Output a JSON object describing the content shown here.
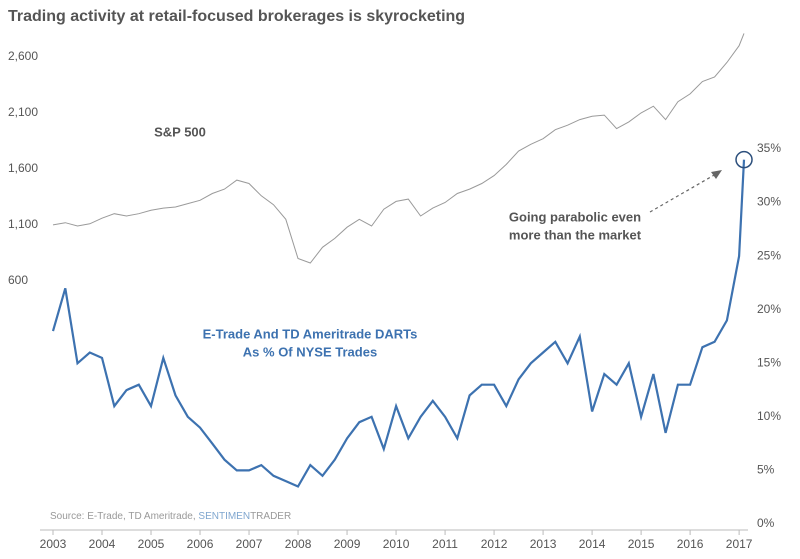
{
  "chart_data": {
    "type": "line",
    "title": "Trading activity at retail-focused brokerages is skyrocketing",
    "x": [
      2003,
      2003.25,
      2003.5,
      2003.75,
      2004,
      2004.25,
      2004.5,
      2004.75,
      2005,
      2005.25,
      2005.5,
      2005.75,
      2006,
      2006.25,
      2006.5,
      2006.75,
      2007,
      2007.25,
      2007.5,
      2007.75,
      2008,
      2008.25,
      2008.5,
      2008.75,
      2009,
      2009.25,
      2009.5,
      2009.75,
      2010,
      2010.25,
      2010.5,
      2010.75,
      2011,
      2011.25,
      2011.5,
      2011.75,
      2012,
      2012.25,
      2012.5,
      2012.75,
      2013,
      2013.25,
      2013.5,
      2013.75,
      2014,
      2014.25,
      2014.5,
      2014.75,
      2015,
      2015.25,
      2015.5,
      2015.75,
      2016,
      2016.25,
      2016.5,
      2016.75,
      2017,
      2017.1
    ],
    "xlim": [
      2003,
      2017.12
    ],
    "xticks": [
      2003,
      2004,
      2005,
      2006,
      2007,
      2008,
      2009,
      2010,
      2011,
      2012,
      2013,
      2014,
      2015,
      2016,
      2017
    ],
    "ylim": [
      -1570,
      2840
    ],
    "yticks": [
      600,
      {
        "value": 1100,
        "label": "1,100"
      },
      {
        "value": 1600,
        "label": "1,600"
      },
      {
        "value": 2100,
        "label": "2,100"
      },
      {
        "value": 2600,
        "label": "2,600"
      }
    ],
    "y2lim": [
      0,
      46.1
    ],
    "y2ticks": [
      {
        "value": 0,
        "label": "0%"
      },
      {
        "value": 5,
        "label": "5%"
      },
      {
        "value": 10,
        "label": "10%"
      },
      {
        "value": 15,
        "label": "15%"
      },
      {
        "value": 20,
        "label": "20%"
      },
      {
        "value": 25,
        "label": "25%"
      },
      {
        "value": 30,
        "label": "30%"
      },
      {
        "value": 35,
        "label": "35%"
      }
    ],
    "series": [
      {
        "name": "S&P 500",
        "color": "#9a9a9a",
        "values": [
          1100,
          1120,
          1090,
          1110,
          1160,
          1200,
          1180,
          1200,
          1230,
          1250,
          1260,
          1290,
          1320,
          1380,
          1420,
          1500,
          1470,
          1360,
          1280,
          1150,
          800,
          760,
          900,
          980,
          1080,
          1150,
          1090,
          1240,
          1310,
          1330,
          1180,
          1250,
          1300,
          1380,
          1420,
          1470,
          1540,
          1640,
          1760,
          1820,
          1870,
          1950,
          1990,
          2040,
          2070,
          2080,
          1960,
          2020,
          2100,
          2160,
          2040,
          2200,
          2270,
          2380,
          2420,
          2550,
          2700,
          2810
        ]
      },
      {
        "name": [
          "E-Trade And TD Ameritrade DARTs",
          "As % Of NYSE Trades"
        ],
        "color": "#3d72b0",
        "axis": "y2",
        "values": [
          18,
          22,
          15,
          16,
          15.5,
          11,
          12.5,
          13,
          11,
          15.5,
          12,
          10,
          9,
          7.5,
          6,
          5,
          5,
          5.5,
          4.5,
          4,
          3.5,
          5.5,
          4.5,
          6,
          8,
          9.5,
          10,
          7,
          11,
          8,
          10,
          11.5,
          10,
          8,
          12,
          13,
          13,
          11,
          13.5,
          15,
          16,
          17,
          15,
          17.5,
          10.5,
          14,
          13,
          15,
          10,
          14,
          8.5,
          13,
          13,
          16.5,
          17,
          19,
          25,
          34
        ]
      }
    ],
    "annotation": [
      "Going parabolic even",
      "more than the market"
    ],
    "source": "Source: E-Trade, TD Ameritrade,",
    "brand": [
      "SENTIMEN",
      "TRADER"
    ]
  }
}
